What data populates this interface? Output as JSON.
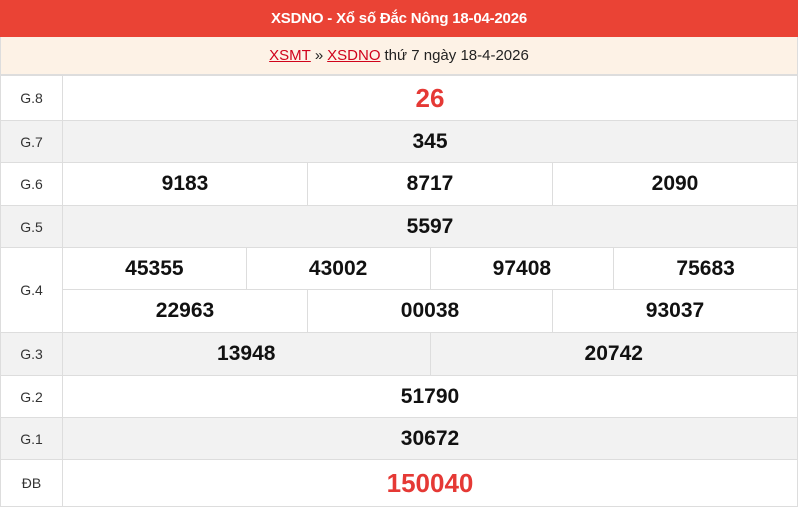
{
  "header": {
    "title": "XSDNO - Xổ số Đắc Nông 18-04-2026"
  },
  "breadcrumb": {
    "link1": "XSMT",
    "separator": "»",
    "link2": "XSDNO",
    "suffix": "thứ 7 ngày 18-4-2026"
  },
  "prizes": [
    {
      "label": "G.8",
      "numbers": [
        "26"
      ]
    },
    {
      "label": "G.7",
      "numbers": [
        "345"
      ]
    },
    {
      "label": "G.6",
      "numbers": [
        "9183",
        "8717",
        "2090"
      ]
    },
    {
      "label": "G.5",
      "numbers": [
        "5597"
      ]
    },
    {
      "label": "G.4",
      "numbers": [
        "45355",
        "43002",
        "97408",
        "75683",
        "22963",
        "00038",
        "93037"
      ]
    },
    {
      "label": "G.3",
      "numbers": [
        "13948",
        "20742"
      ]
    },
    {
      "label": "G.2",
      "numbers": [
        "51790"
      ]
    },
    {
      "label": "G.1",
      "numbers": [
        "30672"
      ]
    },
    {
      "label": "ĐB",
      "numbers": [
        "150040"
      ]
    }
  ],
  "colors": {
    "header": "#ea4335",
    "highlight": "#e53935"
  }
}
